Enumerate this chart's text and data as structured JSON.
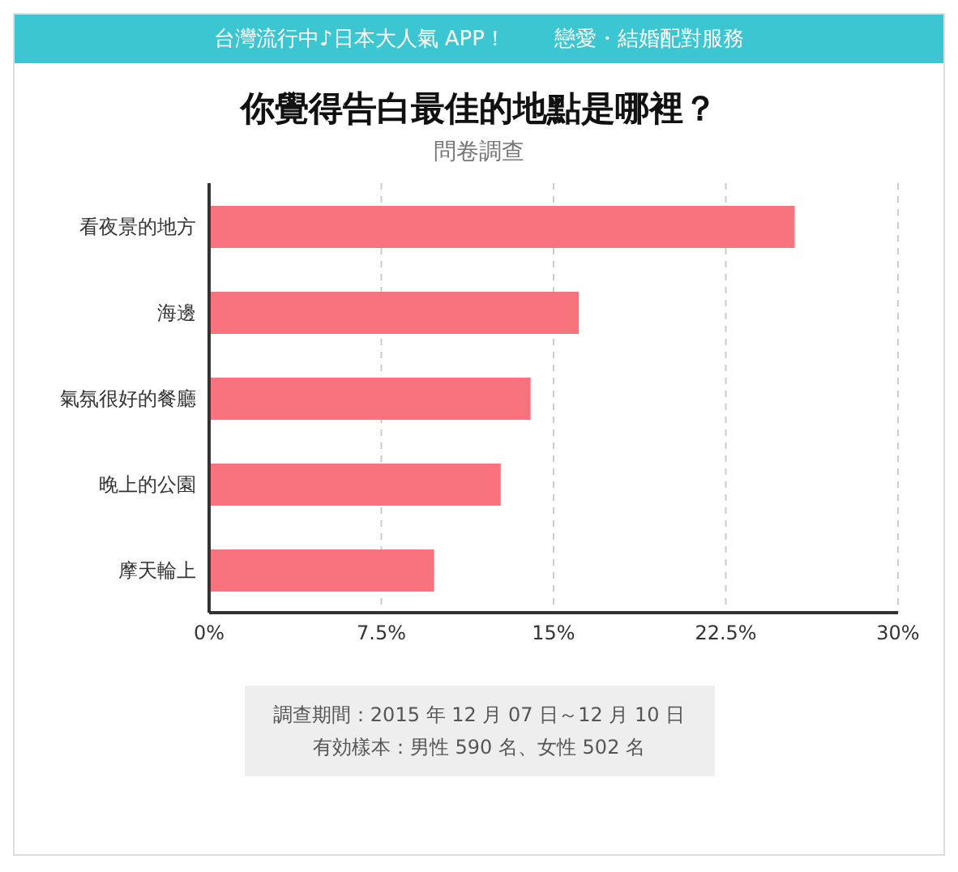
{
  "chart_data": {
    "type": "bar",
    "orientation": "horizontal",
    "title": "你覺得告白最佳的地點是哪裡？",
    "subtitle": "問卷調查",
    "categories": [
      "看夜景的地方",
      "海邊",
      "氣氛很好的餐廳",
      "晚上的公園",
      "摩天輪上"
    ],
    "values": [
      25.5,
      16.1,
      14.0,
      12.7,
      9.8
    ],
    "color": "#f8737e",
    "xlim": [
      0,
      30
    ],
    "xticks": [
      {
        "value": 0,
        "label": "0%"
      },
      {
        "value": 7.5,
        "label": "7.5%"
      },
      {
        "value": 15,
        "label": "15%"
      },
      {
        "value": 22.5,
        "label": "22.5%"
      },
      {
        "value": 30,
        "label": "30%"
      }
    ],
    "grid": "x",
    "annotations": [
      "台灣流行中♪日本大人氣 APP！",
      "戀愛・結婚配對服務",
      "調查期間：2015 年 12 月 07 日～12 月 10 日",
      "有効樣本：男性 590 名、女性 502 名"
    ]
  }
}
